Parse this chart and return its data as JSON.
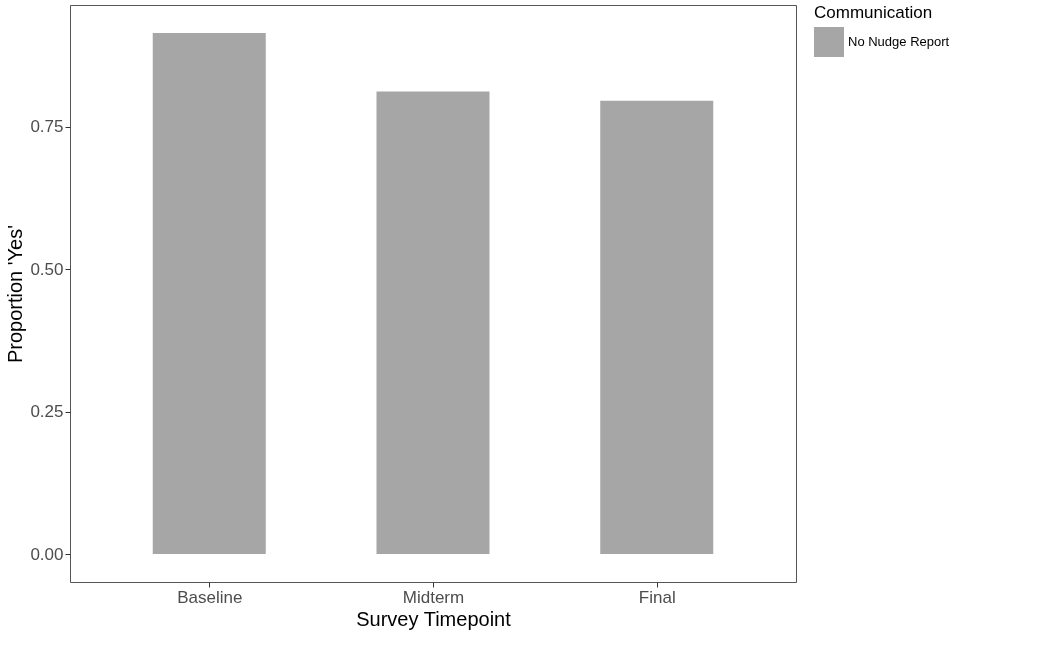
{
  "chart_data": {
    "type": "bar",
    "xlabel": "Survey Timepoint",
    "ylabel": "Proportion 'Yes'",
    "legend_title": "Communication",
    "categories": [
      "Baseline",
      "Midterm",
      "Final"
    ],
    "series": [
      {
        "name": "No Nudge Report",
        "color": "#a6a6a6",
        "values": [
          0.915,
          0.812,
          0.796
        ]
      }
    ],
    "ylim": [
      -0.049,
      0.964
    ],
    "yticks": [
      {
        "value": 0,
        "label": "0.00"
      },
      {
        "value": 0.25,
        "label": "0.25"
      },
      {
        "value": 0.5,
        "label": "0.50"
      },
      {
        "value": 0.75,
        "label": "0.75"
      }
    ],
    "grid": false,
    "legend": "right"
  }
}
